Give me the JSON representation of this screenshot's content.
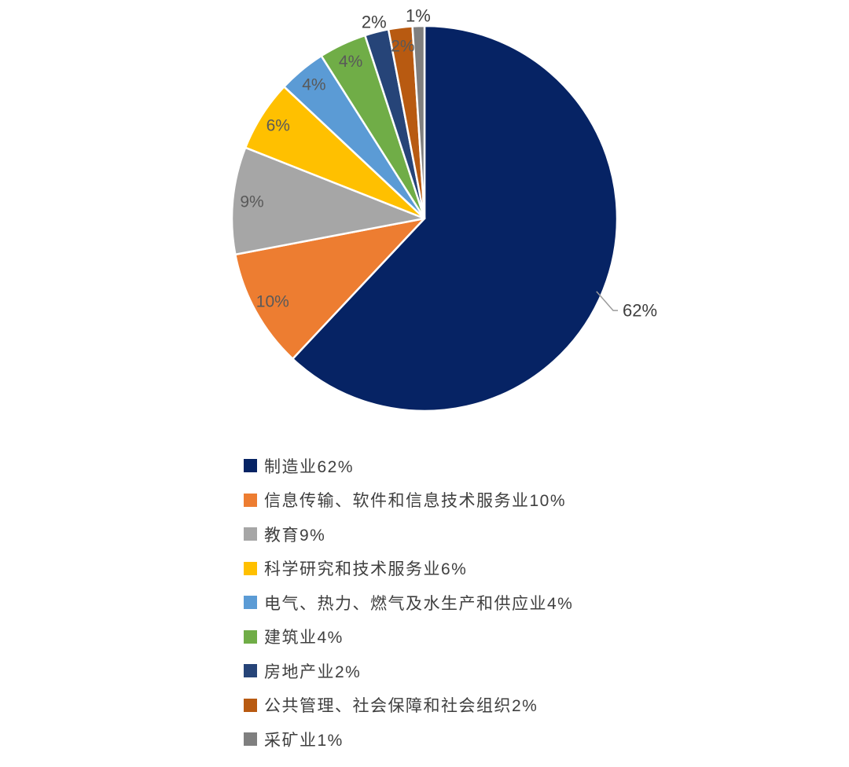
{
  "page": {
    "background_color": "#ffffff"
  },
  "chart_data": {
    "type": "pie",
    "title": "",
    "direction": "clockwise",
    "start_angle_deg": 0,
    "legend_position": "bottom-left",
    "label_colors": {
      "inside": "#595959",
      "outside": "#3f3f3f"
    },
    "categories": [
      "制造业",
      "信息传输、软件和信息技术服务业",
      "教育",
      "科学研究和技术服务业",
      "电气、热力、燃气及水生产和供应业",
      "建筑业",
      "房地产业",
      "公共管理、社会保障和社会组织",
      "采矿业"
    ],
    "values": [
      62,
      10,
      9,
      6,
      4,
      4,
      2,
      2,
      1
    ],
    "series": [
      {
        "name": "制造业",
        "value": 62,
        "color": "#062364",
        "label": "62%",
        "label_placement": "callout",
        "legend_label": "制造业62%"
      },
      {
        "name": "信息传输、软件和信息技术服务业",
        "value": 10,
        "color": "#ED7D31",
        "label": "10%",
        "label_placement": "inside",
        "legend_label": "信息传输、软件和信息技术服务业10%"
      },
      {
        "name": "教育",
        "value": 9,
        "color": "#A6A6A6",
        "label": "9%",
        "label_placement": "inside",
        "legend_label": "教育9%"
      },
      {
        "name": "科学研究和技术服务业",
        "value": 6,
        "color": "#FFC000",
        "label": "6%",
        "label_placement": "inside",
        "legend_label": "科学研究和技术服务业6%"
      },
      {
        "name": "电气、热力、燃气及水生产和供应业",
        "value": 4,
        "color": "#5B9BD5",
        "label": "4%",
        "label_placement": "inside",
        "legend_label": "电气、热力、燃气及水生产和供应业4%"
      },
      {
        "name": "建筑业",
        "value": 4,
        "color": "#70AD47",
        "label": "4%",
        "label_placement": "inside",
        "legend_label": "建筑业4%"
      },
      {
        "name": "房地产业",
        "value": 2,
        "color": "#264478",
        "label": "2%",
        "label_placement": "outside",
        "legend_label": "房地产业2%"
      },
      {
        "name": "公共管理、社会保障和社会组织",
        "value": 2,
        "color": "#B85A11",
        "label": "2%",
        "label_placement": "inside",
        "legend_label": "公共管理、社会保障和社会组织2%"
      },
      {
        "name": "采矿业",
        "value": 1,
        "color": "#7F7F7F",
        "label": "1%",
        "label_placement": "outside",
        "legend_label": "采矿业1%"
      }
    ]
  }
}
